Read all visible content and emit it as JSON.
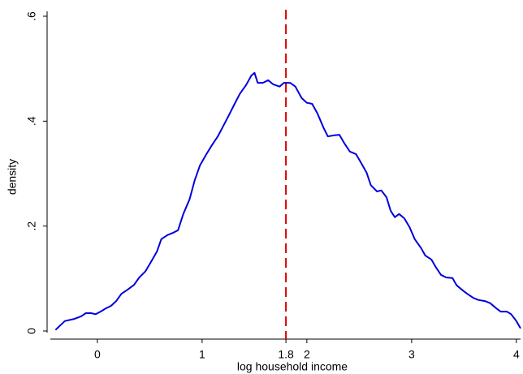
{
  "chart_data": {
    "type": "line",
    "x_label": "log household income",
    "y_label": "density",
    "x": [
      -0.4,
      -0.31,
      -0.22,
      -0.155,
      -0.11,
      -0.06,
      -0.016,
      0.03,
      0.08,
      0.13,
      0.18,
      0.23,
      0.29,
      0.35,
      0.4,
      0.46,
      0.51,
      0.57,
      0.61,
      0.67,
      0.72,
      0.77,
      0.82,
      0.88,
      0.93,
      0.98,
      1.04,
      1.09,
      1.15,
      1.2,
      1.26,
      1.31,
      1.36,
      1.42,
      1.47,
      1.5,
      1.53,
      1.58,
      1.63,
      1.68,
      1.74,
      1.78,
      1.84,
      1.89,
      1.95,
      2.0,
      2.05,
      2.1,
      2.16,
      2.2,
      2.26,
      2.31,
      2.36,
      2.41,
      2.47,
      2.51,
      2.57,
      2.61,
      2.67,
      2.71,
      2.76,
      2.8,
      2.84,
      2.88,
      2.93,
      2.98,
      3.03,
      3.09,
      3.13,
      3.19,
      3.23,
      3.28,
      3.33,
      3.39,
      3.43,
      3.49,
      3.53,
      3.59,
      3.64,
      3.7,
      3.75,
      3.81,
      3.85,
      3.91,
      3.95,
      4.0,
      4.04
    ],
    "series": [
      {
        "color": "#0000dd",
        "values": [
          0.002,
          0.019,
          0.023,
          0.028,
          0.034,
          0.034,
          0.032,
          0.037,
          0.043,
          0.048,
          0.057,
          0.071,
          0.079,
          0.088,
          0.102,
          0.114,
          0.131,
          0.152,
          0.175,
          0.183,
          0.187,
          0.192,
          0.223,
          0.251,
          0.288,
          0.316,
          0.337,
          0.353,
          0.371,
          0.39,
          0.413,
          0.433,
          0.452,
          0.469,
          0.487,
          0.492,
          0.473,
          0.473,
          0.478,
          0.47,
          0.466,
          0.473,
          0.473,
          0.466,
          0.444,
          0.435,
          0.433,
          0.415,
          0.387,
          0.371,
          0.373,
          0.374,
          0.357,
          0.342,
          0.337,
          0.323,
          0.302,
          0.278,
          0.266,
          0.268,
          0.255,
          0.229,
          0.217,
          0.223,
          0.215,
          0.198,
          0.175,
          0.158,
          0.144,
          0.136,
          0.122,
          0.107,
          0.102,
          0.101,
          0.087,
          0.077,
          0.071,
          0.063,
          0.059,
          0.057,
          0.053,
          0.043,
          0.037,
          0.037,
          0.032,
          0.019,
          0.005
        ]
      }
    ],
    "reference_line": {
      "x": 1.8,
      "color": "#e00000",
      "style": "dashed"
    },
    "xlim": [
      -0.48,
      4.04
    ],
    "xticks": [
      0,
      1,
      1.8,
      2,
      3,
      4
    ],
    "ylim": [
      0,
      0.6
    ],
    "yticks": [
      0,
      {
        "value": 0.2,
        "label": ".2"
      },
      {
        "value": 0.4,
        "label": ".4"
      },
      {
        "value": 0.6,
        "label": ".6"
      }
    ],
    "grid": false
  }
}
